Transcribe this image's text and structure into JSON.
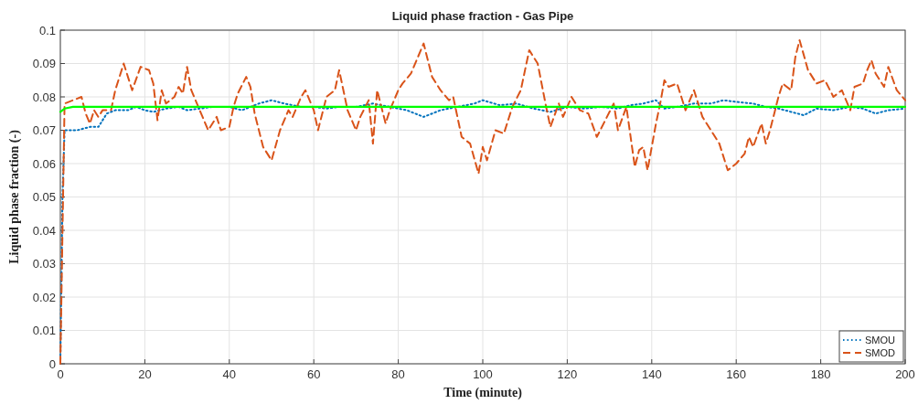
{
  "chart_data": {
    "type": "line",
    "title": "Liquid phase fraction - Gas Pipe",
    "xlabel": "Time (minute)",
    "ylabel": "Liquid phase fraction (-)",
    "xlim": [
      0,
      200
    ],
    "xticks": [
      0,
      20,
      40,
      60,
      80,
      100,
      120,
      140,
      160,
      180,
      200
    ],
    "ylim": [
      0,
      0.1
    ],
    "yticks": [
      0,
      0.01,
      0.02,
      0.03,
      0.04,
      0.05,
      0.06,
      0.07,
      0.08,
      0.09,
      0.1
    ],
    "grid": true,
    "legend": "bottom right",
    "series": [
      {
        "name": "SMOU",
        "color": "#0072bd",
        "line_style": "dotted",
        "x": [
          0,
          0.5,
          1,
          4,
          7,
          9,
          11,
          13,
          16,
          18,
          20,
          22,
          25,
          28,
          30,
          33,
          36,
          40,
          43,
          47,
          50,
          53,
          57,
          60,
          63,
          66,
          70,
          74,
          78,
          82,
          86,
          90,
          94,
          98,
          100,
          104,
          108,
          112,
          116,
          120,
          124,
          128,
          132,
          135,
          138,
          141,
          143,
          146,
          150,
          154,
          157,
          160,
          164,
          167,
          170,
          173,
          176,
          179,
          183,
          187,
          190,
          193,
          196,
          200
        ],
        "values": [
          0,
          0.05,
          0.07,
          0.07,
          0.071,
          0.071,
          0.075,
          0.076,
          0.076,
          0.077,
          0.076,
          0.0755,
          0.0765,
          0.077,
          0.076,
          0.0765,
          0.077,
          0.077,
          0.076,
          0.078,
          0.079,
          0.078,
          0.077,
          0.077,
          0.0765,
          0.077,
          0.077,
          0.078,
          0.077,
          0.076,
          0.074,
          0.076,
          0.077,
          0.078,
          0.079,
          0.0775,
          0.078,
          0.0765,
          0.0755,
          0.077,
          0.0765,
          0.077,
          0.0765,
          0.0775,
          0.078,
          0.079,
          0.0765,
          0.077,
          0.078,
          0.078,
          0.079,
          0.0785,
          0.078,
          0.077,
          0.0765,
          0.0755,
          0.0745,
          0.0765,
          0.076,
          0.077,
          0.0765,
          0.075,
          0.076,
          0.0765
        ]
      },
      {
        "name": "SMOD",
        "color": "#d95319",
        "line_style": "dashed",
        "x": [
          0,
          1,
          3,
          5,
          6,
          7,
          8,
          9,
          10,
          12,
          13,
          15,
          16,
          17,
          19,
          21,
          22,
          23,
          24,
          25,
          27,
          28,
          29,
          30,
          31,
          33,
          35,
          37,
          38,
          40,
          41,
          42,
          44,
          45,
          46,
          48,
          50,
          52,
          54,
          55,
          57,
          58,
          60,
          61,
          63,
          65,
          66,
          68,
          70,
          71,
          73,
          74,
          75,
          77,
          78,
          80,
          81,
          83,
          86,
          88,
          90,
          92,
          93,
          95,
          97,
          99,
          100,
          101,
          103,
          105,
          107,
          109,
          111,
          113,
          115,
          116,
          118,
          119,
          121,
          123,
          125,
          127,
          129,
          131,
          132,
          134,
          136,
          137,
          138,
          139,
          141,
          142,
          143,
          144,
          146,
          147,
          148,
          150,
          152,
          154,
          156,
          158,
          160,
          162,
          163,
          164,
          166,
          167,
          168,
          170,
          171,
          173,
          174,
          175,
          177,
          179,
          181,
          183,
          185,
          186,
          187,
          188,
          190,
          191,
          192,
          193,
          195,
          196,
          198,
          200
        ],
        "values": [
          0,
          0.078,
          0.079,
          0.08,
          0.075,
          0.072,
          0.076,
          0.074,
          0.076,
          0.076,
          0.082,
          0.09,
          0.086,
          0.082,
          0.089,
          0.088,
          0.084,
          0.073,
          0.082,
          0.078,
          0.08,
          0.083,
          0.081,
          0.089,
          0.082,
          0.076,
          0.07,
          0.074,
          0.07,
          0.071,
          0.077,
          0.081,
          0.086,
          0.083,
          0.075,
          0.065,
          0.061,
          0.07,
          0.076,
          0.074,
          0.08,
          0.082,
          0.076,
          0.07,
          0.08,
          0.082,
          0.088,
          0.076,
          0.07,
          0.074,
          0.079,
          0.066,
          0.082,
          0.072,
          0.076,
          0.082,
          0.084,
          0.087,
          0.096,
          0.086,
          0.082,
          0.079,
          0.08,
          0.068,
          0.066,
          0.057,
          0.065,
          0.061,
          0.07,
          0.069,
          0.077,
          0.082,
          0.094,
          0.09,
          0.077,
          0.071,
          0.078,
          0.074,
          0.08,
          0.076,
          0.075,
          0.068,
          0.073,
          0.078,
          0.07,
          0.077,
          0.059,
          0.064,
          0.065,
          0.058,
          0.072,
          0.078,
          0.085,
          0.083,
          0.084,
          0.08,
          0.076,
          0.082,
          0.074,
          0.07,
          0.066,
          0.058,
          0.06,
          0.063,
          0.068,
          0.065,
          0.072,
          0.066,
          0.07,
          0.08,
          0.084,
          0.082,
          0.092,
          0.097,
          0.088,
          0.084,
          0.085,
          0.08,
          0.082,
          0.079,
          0.076,
          0.083,
          0.084,
          0.088,
          0.091,
          0.087,
          0.083,
          0.089,
          0.082,
          0.079
        ]
      },
      {
        "color": "#00ff00",
        "line_style": "solid",
        "x": [
          0,
          1,
          3,
          200
        ],
        "values": [
          0.0755,
          0.0765,
          0.077,
          0.077
        ]
      }
    ]
  }
}
